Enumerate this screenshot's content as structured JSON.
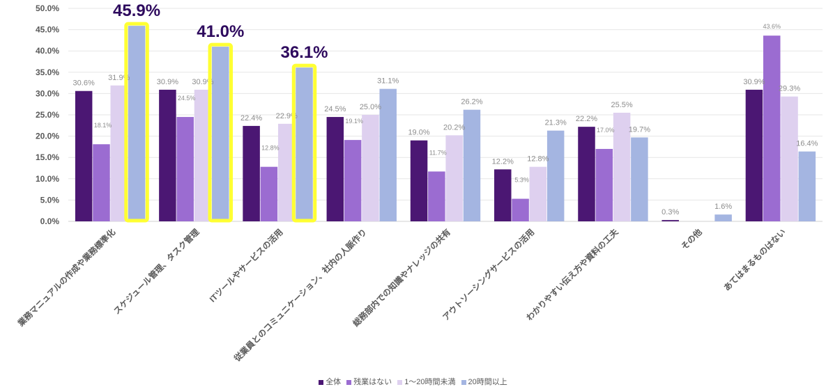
{
  "chart_data": {
    "type": "bar",
    "title": "",
    "xlabel": "",
    "ylabel": "",
    "ylim": [
      0,
      50
    ],
    "yticks": [
      "0.0%",
      "5.0%",
      "10.0%",
      "15.0%",
      "20.0%",
      "25.0%",
      "30.0%",
      "35.0%",
      "40.0%",
      "45.0%",
      "50.0%"
    ],
    "categories": [
      "業務マニュアルの作成や業務標準化",
      "スケジュール管理、タスク管理",
      "ITツールやサービスの活用",
      "従業員とのコミュニケーション、社内の人脈作り",
      "総務部内での知識やナレッジの共有",
      "アウトソーシングサービスの活用",
      "わかりやすい伝え方や資料の工夫",
      "その他",
      "あてはまるものはない"
    ],
    "series": [
      {
        "name": "全体",
        "color": "#4b1773",
        "values": [
          30.6,
          30.9,
          22.4,
          24.5,
          19.0,
          12.2,
          22.2,
          0.3,
          30.9
        ],
        "labels": [
          "30.6%",
          "30.9%",
          "22.4%",
          "24.5%",
          "19.0%",
          "12.2%",
          "22.2%",
          "0.3%",
          "30.9%"
        ]
      },
      {
        "name": "残業はない",
        "color": "#9b6cd1",
        "values": [
          18.1,
          24.5,
          12.8,
          19.1,
          11.7,
          5.3,
          17.0,
          0,
          43.6
        ],
        "labels": [
          "18.1%",
          "24.5%",
          "12.8%",
          "19.1%",
          "11.7%",
          "5.3%",
          "17.0%",
          "",
          "43.6%"
        ]
      },
      {
        "name": "1〜20時間未満",
        "color": "#ded0ef",
        "values": [
          31.9,
          30.9,
          22.9,
          25.0,
          20.2,
          12.8,
          25.5,
          0,
          29.3
        ],
        "labels": [
          "31.9%",
          "30.9%",
          "22.9%",
          "25.0%",
          "20.2%",
          "12.8%",
          "25.5%",
          "",
          "29.3%"
        ]
      },
      {
        "name": "20時間以上",
        "color": "#a4b5e1",
        "values": [
          45.9,
          41.0,
          36.1,
          31.1,
          26.2,
          21.3,
          19.7,
          1.6,
          16.4
        ],
        "labels": [
          "45.9%",
          "41.0%",
          "36.1%",
          "31.1%",
          "26.2%",
          "21.3%",
          "19.7%",
          "1.6%",
          "16.4%"
        ]
      }
    ],
    "highlights": [
      {
        "category_index": 0,
        "series_index": 3,
        "label": "45.9%",
        "color": "#ffff33"
      },
      {
        "category_index": 1,
        "series_index": 3,
        "label": "41.0%",
        "color": "#ffff33"
      },
      {
        "category_index": 2,
        "series_index": 3,
        "label": "36.1%",
        "color": "#ffff33"
      }
    ],
    "legend_position": "bottom"
  }
}
